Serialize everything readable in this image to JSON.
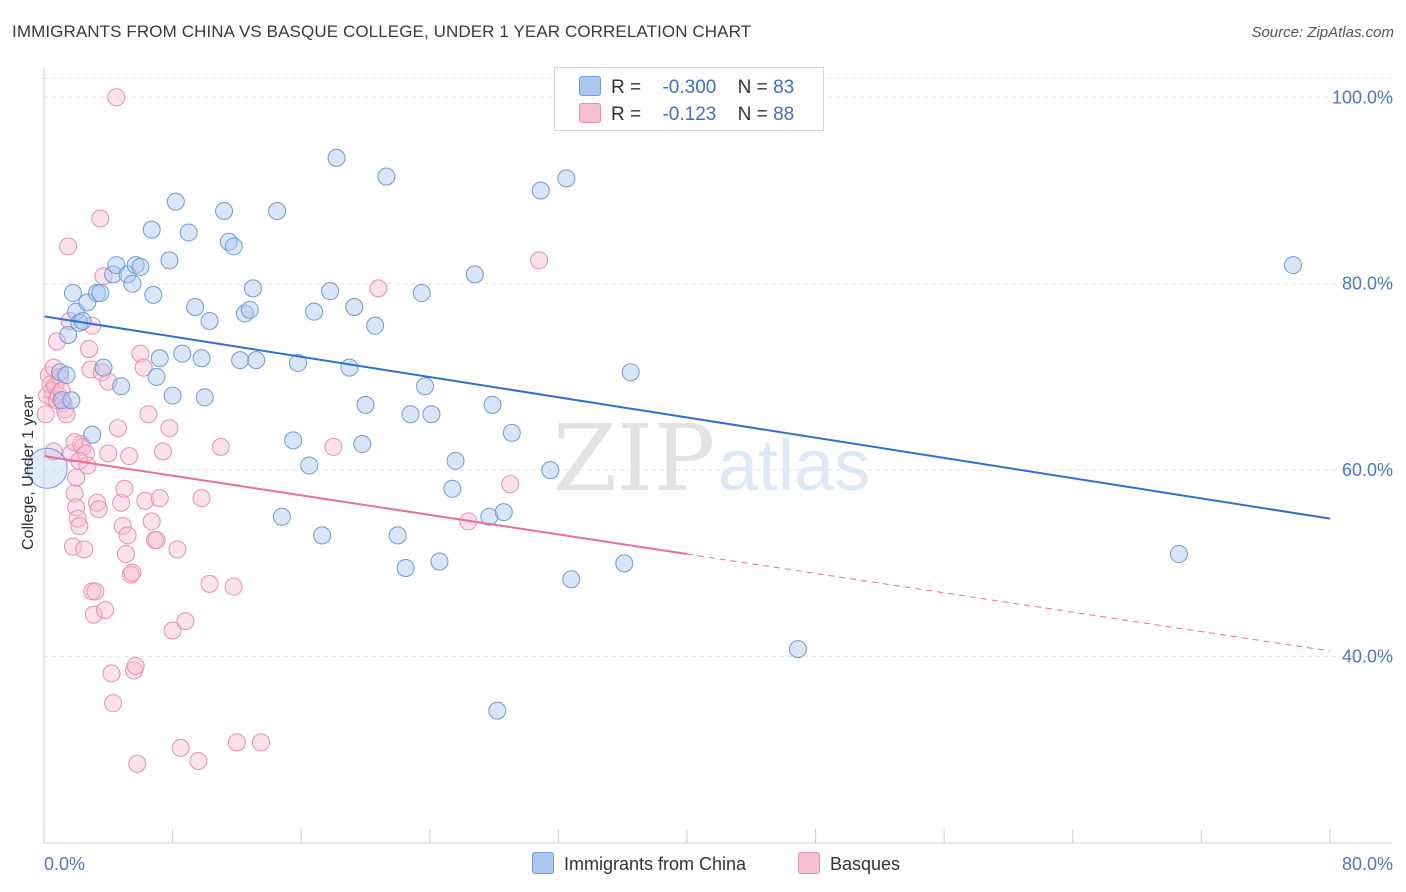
{
  "title": "IMMIGRANTS FROM CHINA VS BASQUE COLLEGE, UNDER 1 YEAR CORRELATION CHART",
  "source": "Source: ZipAtlas.com",
  "watermark": {
    "zip": "ZIP",
    "atlas": "atlas"
  },
  "legend": {
    "r_label": "R =",
    "n_label": "N =",
    "series1": {
      "r": "-0.300",
      "n": "83"
    },
    "series2": {
      "r": "-0.123",
      "n": "88"
    }
  },
  "bottom_legend": [
    "Immigrants from China",
    "Basques"
  ],
  "colors": {
    "blue_fill": "#aac8f0",
    "blue_stroke": "#6f9ad8",
    "blue_line": "#2f6fd0",
    "pink_fill": "#f8bfd2",
    "pink_stroke": "#ec8fae",
    "pink_line": "#e8709a",
    "grid": "#e4e4e4",
    "tick_label": "#4a78c8"
  },
  "chart_data": {
    "type": "scatter",
    "title": "IMMIGRANTS FROM CHINA VS BASQUE COLLEGE, UNDER 1 YEAR CORRELATION CHART",
    "xlabel": "",
    "ylabel": "College, Under 1 year",
    "xlim": [
      0,
      80
    ],
    "ylim": [
      20,
      104
    ],
    "x_tick_labels": [
      "0.0%",
      "80.0%"
    ],
    "y_ticks": [
      40,
      60,
      80,
      100
    ],
    "y_tick_labels": [
      "40.0%",
      "60.0%",
      "80.0%",
      "100.0%"
    ],
    "grid": true,
    "legend_position": "top-center",
    "series": [
      {
        "name": "Immigrants from China",
        "r": -0.3,
        "n": 83,
        "trend": {
          "x": [
            0,
            80
          ],
          "y": [
            76.5,
            54.8
          ]
        },
        "points": [
          [
            0.2,
            60.2
          ],
          [
            1.0,
            70.5
          ],
          [
            1.1,
            67.5
          ],
          [
            1.5,
            74.5
          ],
          [
            1.8,
            79.0
          ],
          [
            2.0,
            77.0
          ],
          [
            2.2,
            75.8
          ],
          [
            2.4,
            76.0
          ],
          [
            2.7,
            78.0
          ],
          [
            3.0,
            63.8
          ],
          [
            3.3,
            79.0
          ],
          [
            3.5,
            79.0
          ],
          [
            3.7,
            71.0
          ],
          [
            4.3,
            81.0
          ],
          [
            4.5,
            82.0
          ],
          [
            4.8,
            69.0
          ],
          [
            5.2,
            81.0
          ],
          [
            5.5,
            80.0
          ],
          [
            5.7,
            82.0
          ],
          [
            6.0,
            81.8
          ],
          [
            6.7,
            85.8
          ],
          [
            6.8,
            78.8
          ],
          [
            7.0,
            70.0
          ],
          [
            7.2,
            72.0
          ],
          [
            7.8,
            82.5
          ],
          [
            8.0,
            68.0
          ],
          [
            8.2,
            88.8
          ],
          [
            8.6,
            72.5
          ],
          [
            9.0,
            85.5
          ],
          [
            9.4,
            77.5
          ],
          [
            9.8,
            72.0
          ],
          [
            10.0,
            67.8
          ],
          [
            10.3,
            76.0
          ],
          [
            11.2,
            87.8
          ],
          [
            11.5,
            84.5
          ],
          [
            11.8,
            84.0
          ],
          [
            12.2,
            71.8
          ],
          [
            12.5,
            76.8
          ],
          [
            12.8,
            77.2
          ],
          [
            13.0,
            79.5
          ],
          [
            13.2,
            71.8
          ],
          [
            14.5,
            87.8
          ],
          [
            14.8,
            55.0
          ],
          [
            15.5,
            63.2
          ],
          [
            15.8,
            71.5
          ],
          [
            16.5,
            60.5
          ],
          [
            16.8,
            77.0
          ],
          [
            17.3,
            53.0
          ],
          [
            17.8,
            79.2
          ],
          [
            18.2,
            93.5
          ],
          [
            19.0,
            71.0
          ],
          [
            19.3,
            77.5
          ],
          [
            19.8,
            62.8
          ],
          [
            20.0,
            67.0
          ],
          [
            20.6,
            75.5
          ],
          [
            21.3,
            91.5
          ],
          [
            22.0,
            53.0
          ],
          [
            22.5,
            49.5
          ],
          [
            22.8,
            66.0
          ],
          [
            23.5,
            79.0
          ],
          [
            23.7,
            69.0
          ],
          [
            24.1,
            66.0
          ],
          [
            24.6,
            50.2
          ],
          [
            25.4,
            58.0
          ],
          [
            25.6,
            61.0
          ],
          [
            26.8,
            81.0
          ],
          [
            27.7,
            55.0
          ],
          [
            27.9,
            67.0
          ],
          [
            28.2,
            34.2
          ],
          [
            28.6,
            55.5
          ],
          [
            29.1,
            64.0
          ],
          [
            30.9,
            90.0
          ],
          [
            31.5,
            60.0
          ],
          [
            32.5,
            91.3
          ],
          [
            32.8,
            48.3
          ],
          [
            33.9,
            98.2
          ],
          [
            36.1,
            50.0
          ],
          [
            36.5,
            70.5
          ],
          [
            46.9,
            40.8
          ],
          [
            70.6,
            51.0
          ],
          [
            77.7,
            82.0
          ],
          [
            1.4,
            70.2
          ],
          [
            1.7,
            67.5
          ]
        ]
      },
      {
        "name": "Basques",
        "r": -0.123,
        "n": 88,
        "trend": {
          "x": [
            0,
            40
          ],
          "y": [
            61.5,
            51.0
          ]
        },
        "trend_extension": {
          "x": [
            40,
            80
          ],
          "y": [
            51.0,
            40.6
          ]
        },
        "points": [
          [
            0.1,
            66.0
          ],
          [
            0.2,
            68.0
          ],
          [
            0.3,
            70.2
          ],
          [
            0.4,
            69.2
          ],
          [
            0.5,
            67.8
          ],
          [
            0.5,
            68.5
          ],
          [
            0.6,
            71.0
          ],
          [
            0.6,
            62.0
          ],
          [
            0.7,
            69.0
          ],
          [
            0.8,
            73.8
          ],
          [
            0.8,
            67.5
          ],
          [
            0.9,
            68.0
          ],
          [
            1.0,
            70.0
          ],
          [
            1.1,
            68.5
          ],
          [
            1.2,
            67.2
          ],
          [
            1.3,
            66.5
          ],
          [
            1.4,
            66.0
          ],
          [
            1.5,
            84.0
          ],
          [
            1.6,
            76.0
          ],
          [
            1.7,
            61.8
          ],
          [
            1.8,
            51.8
          ],
          [
            1.9,
            57.5
          ],
          [
            2.0,
            59.2
          ],
          [
            2.0,
            56.0
          ],
          [
            2.1,
            54.8
          ],
          [
            2.2,
            54.0
          ],
          [
            2.3,
            62.8
          ],
          [
            2.4,
            62.5
          ],
          [
            2.5,
            51.5
          ],
          [
            2.6,
            61.8
          ],
          [
            2.7,
            60.5
          ],
          [
            2.8,
            73.0
          ],
          [
            2.9,
            70.8
          ],
          [
            3.0,
            47.0
          ],
          [
            3.1,
            44.5
          ],
          [
            3.2,
            47.0
          ],
          [
            3.3,
            56.5
          ],
          [
            3.4,
            55.8
          ],
          [
            3.5,
            87.0
          ],
          [
            3.6,
            70.5
          ],
          [
            3.7,
            80.8
          ],
          [
            4.0,
            61.8
          ],
          [
            4.2,
            38.2
          ],
          [
            4.3,
            35.0
          ],
          [
            4.5,
            100.0
          ],
          [
            4.6,
            64.5
          ],
          [
            4.8,
            56.5
          ],
          [
            4.9,
            54.0
          ],
          [
            5.0,
            58.0
          ],
          [
            5.1,
            51.0
          ],
          [
            5.2,
            53.0
          ],
          [
            5.3,
            61.5
          ],
          [
            5.4,
            48.8
          ],
          [
            5.5,
            49.0
          ],
          [
            5.6,
            38.5
          ],
          [
            5.7,
            39.0
          ],
          [
            5.8,
            28.5
          ],
          [
            6.0,
            72.5
          ],
          [
            6.2,
            71.0
          ],
          [
            6.3,
            56.7
          ],
          [
            6.5,
            66.0
          ],
          [
            6.7,
            54.5
          ],
          [
            6.9,
            52.5
          ],
          [
            7.0,
            52.5
          ],
          [
            7.2,
            57.0
          ],
          [
            7.4,
            62.0
          ],
          [
            7.8,
            64.5
          ],
          [
            8.0,
            42.8
          ],
          [
            8.3,
            51.5
          ],
          [
            8.5,
            30.2
          ],
          [
            8.8,
            43.8
          ],
          [
            9.6,
            28.8
          ],
          [
            9.8,
            57.0
          ],
          [
            10.3,
            47.8
          ],
          [
            11.0,
            62.5
          ],
          [
            11.8,
            47.5
          ],
          [
            12.0,
            30.8
          ],
          [
            13.5,
            30.8
          ],
          [
            18.0,
            62.5
          ],
          [
            20.8,
            79.5
          ],
          [
            26.4,
            54.5
          ],
          [
            29.0,
            58.5
          ],
          [
            30.8,
            82.5
          ],
          [
            3.8,
            45.0
          ],
          [
            2.2,
            61.0
          ],
          [
            1.9,
            63.0
          ],
          [
            3.0,
            75.5
          ],
          [
            4.0,
            69.5
          ]
        ]
      }
    ]
  }
}
